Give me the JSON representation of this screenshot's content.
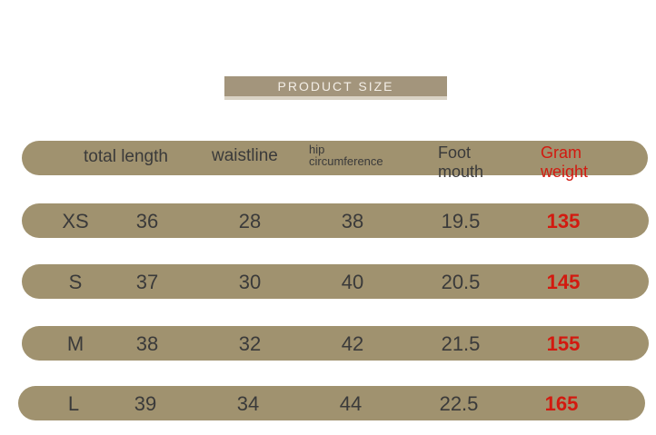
{
  "header": {
    "title": "PRODUCT SIZE"
  },
  "table": {
    "columns": [
      "total length",
      "waistline",
      "hip circumference",
      "Foot mouth",
      "Gram weight"
    ],
    "rows": [
      [
        "XS",
        "36",
        "28",
        "38",
        "19.5",
        "135"
      ],
      [
        "S",
        "37",
        "30",
        "40",
        "20.5",
        "145"
      ],
      [
        "M",
        "38",
        "32",
        "42",
        "21.5",
        "155"
      ],
      [
        "L",
        "39",
        "34",
        "44",
        "22.5",
        "165"
      ]
    ]
  }
}
